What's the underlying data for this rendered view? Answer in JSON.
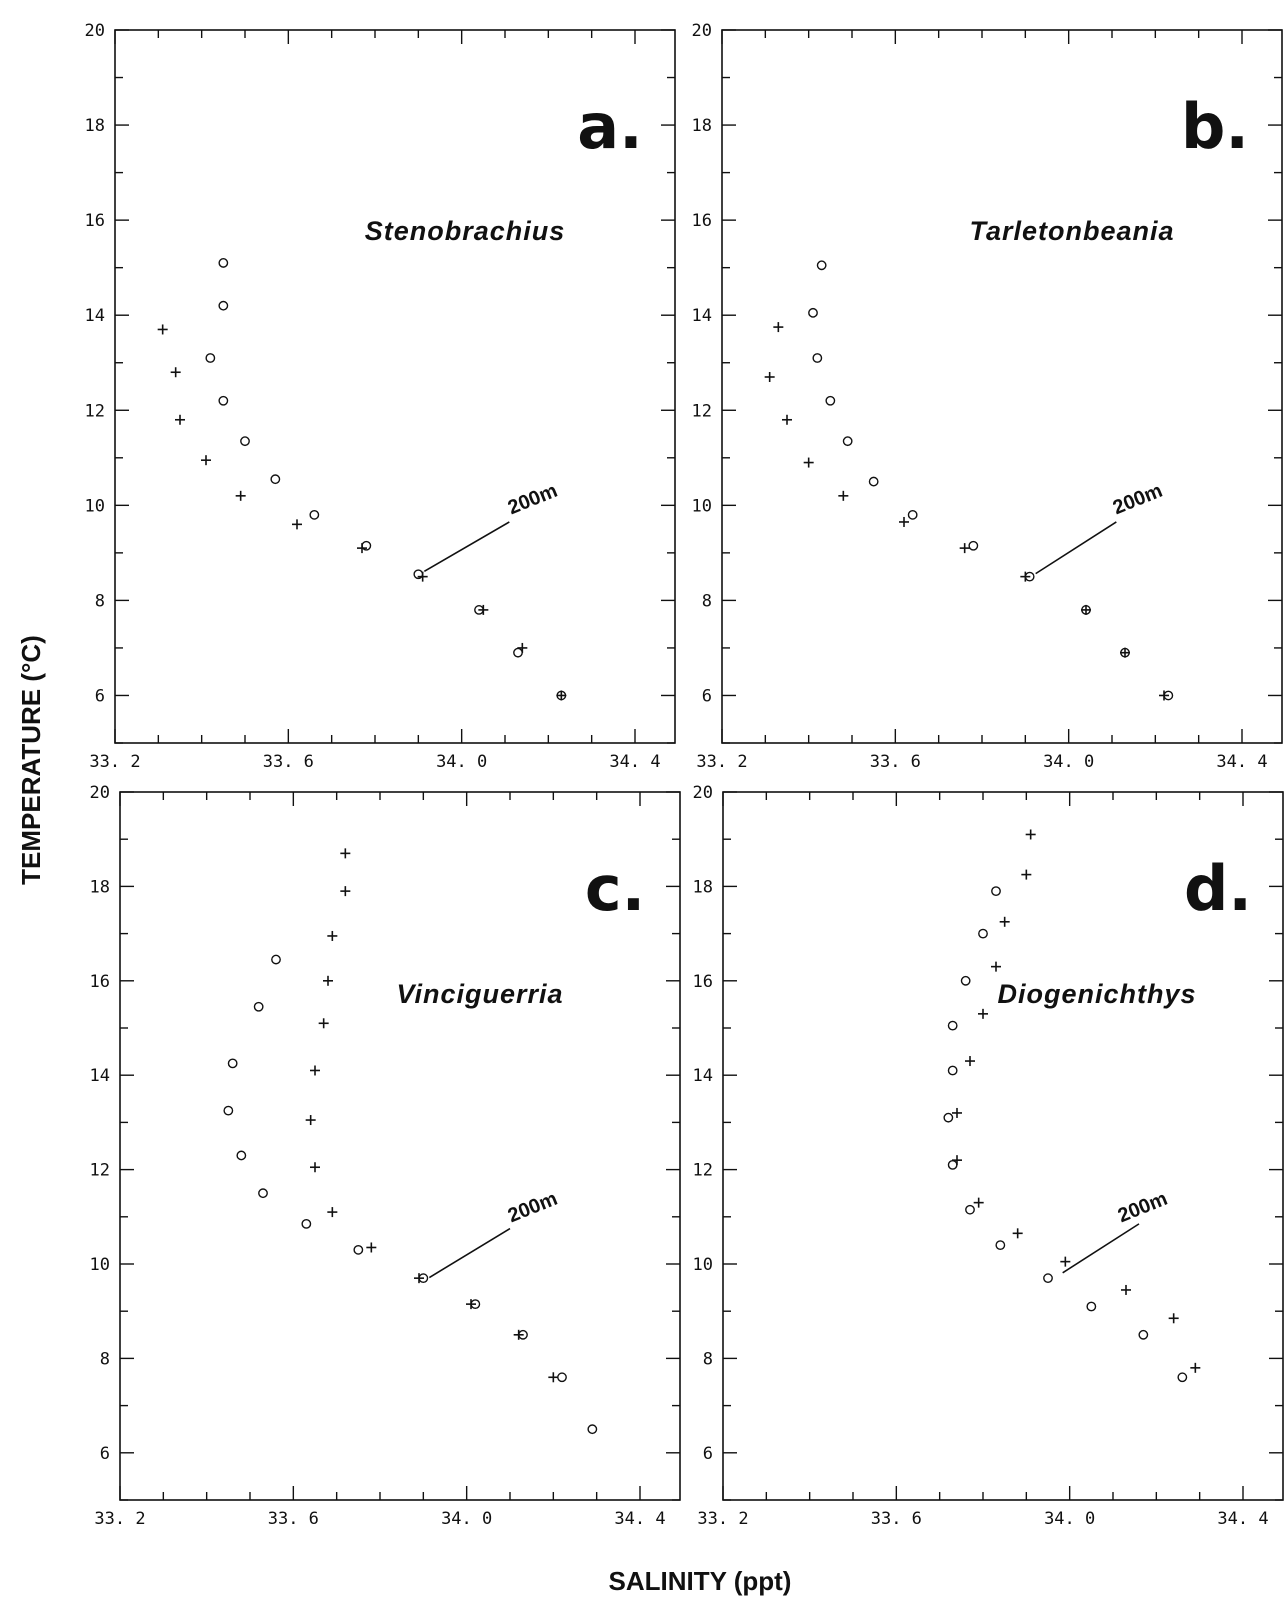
{
  "figure": {
    "y_axis_title": "TEMPERATURE (°C)",
    "x_axis_title": "SALINITY (ppt)"
  },
  "chart_data": [
    {
      "type": "scatter",
      "panel_label": "a.",
      "species_label": "Stenobrachius",
      "annotation": "200m",
      "xlim": [
        33.2,
        34.4
      ],
      "ylim": [
        5,
        20
      ],
      "x_ticks": [
        "33. 2",
        "33. 6",
        "34. 0",
        "34. 4"
      ],
      "y_ticks": [
        "6",
        "8",
        "10",
        "12",
        "14",
        "16",
        "18",
        "20"
      ],
      "series": [
        {
          "marker": "+",
          "points": [
            [
              33.31,
              13.7
            ],
            [
              33.34,
              12.8
            ],
            [
              33.35,
              11.8
            ],
            [
              33.41,
              10.95
            ],
            [
              33.49,
              10.2
            ],
            [
              33.62,
              9.6
            ],
            [
              33.77,
              9.1
            ],
            [
              33.91,
              8.5
            ],
            [
              34.05,
              7.8
            ],
            [
              34.14,
              7.0
            ],
            [
              34.23,
              6.0
            ]
          ]
        },
        {
          "marker": "o",
          "points": [
            [
              33.45,
              15.1
            ],
            [
              33.45,
              14.2
            ],
            [
              33.42,
              13.1
            ],
            [
              33.45,
              12.2
            ],
            [
              33.5,
              11.35
            ],
            [
              33.57,
              10.55
            ],
            [
              33.66,
              9.8
            ],
            [
              33.78,
              9.15
            ],
            [
              33.9,
              8.55
            ],
            [
              34.04,
              7.8
            ],
            [
              34.13,
              6.9
            ],
            [
              34.23,
              6.0
            ]
          ]
        }
      ],
      "annotation_points": [
        [
          33.9,
          8.55
        ],
        [
          34.11,
          9.65
        ]
      ]
    },
    {
      "type": "scatter",
      "panel_label": "b.",
      "species_label": "Tarletonbeania",
      "annotation": "200m",
      "xlim": [
        33.2,
        34.4
      ],
      "ylim": [
        5,
        20
      ],
      "x_ticks": [
        "33. 2",
        "33. 6",
        "34. 0",
        "34. 4"
      ],
      "y_ticks": [
        "6",
        "8",
        "10",
        "12",
        "14",
        "16",
        "18",
        "20"
      ],
      "series": [
        {
          "marker": "+",
          "points": [
            [
              33.33,
              13.75
            ],
            [
              33.31,
              12.7
            ],
            [
              33.35,
              11.8
            ],
            [
              33.4,
              10.9
            ],
            [
              33.48,
              10.2
            ],
            [
              33.62,
              9.65
            ],
            [
              33.76,
              9.1
            ],
            [
              33.9,
              8.5
            ],
            [
              34.04,
              7.8
            ],
            [
              34.13,
              6.9
            ],
            [
              34.22,
              6.0
            ]
          ]
        },
        {
          "marker": "o",
          "points": [
            [
              33.43,
              15.05
            ],
            [
              33.41,
              14.05
            ],
            [
              33.42,
              13.1
            ],
            [
              33.45,
              12.2
            ],
            [
              33.49,
              11.35
            ],
            [
              33.55,
              10.5
            ],
            [
              33.64,
              9.8
            ],
            [
              33.78,
              9.15
            ],
            [
              33.91,
              8.5
            ],
            [
              34.04,
              7.8
            ],
            [
              34.13,
              6.9
            ],
            [
              34.23,
              6.0
            ]
          ]
        }
      ],
      "annotation_points": [
        [
          33.91,
          8.5
        ],
        [
          34.11,
          9.65
        ]
      ]
    },
    {
      "type": "scatter",
      "panel_label": "c.",
      "species_label": "Vinciguerria",
      "annotation": "200m",
      "xlim": [
        33.2,
        34.4
      ],
      "ylim": [
        5,
        20
      ],
      "x_ticks": [
        "33. 2",
        "33. 6",
        "34. 0",
        "34. 4"
      ],
      "y_ticks": [
        "6",
        "8",
        "10",
        "12",
        "14",
        "16",
        "18",
        "20"
      ],
      "series": [
        {
          "marker": "+",
          "points": [
            [
              33.72,
              18.7
            ],
            [
              33.72,
              17.9
            ],
            [
              33.69,
              16.95
            ],
            [
              33.68,
              16.0
            ],
            [
              33.67,
              15.1
            ],
            [
              33.65,
              14.1
            ],
            [
              33.64,
              13.05
            ],
            [
              33.65,
              12.05
            ],
            [
              33.69,
              11.1
            ],
            [
              33.78,
              10.35
            ],
            [
              33.89,
              9.7
            ],
            [
              34.01,
              9.15
            ],
            [
              34.12,
              8.5
            ],
            [
              34.2,
              7.6
            ]
          ]
        },
        {
          "marker": "o",
          "points": [
            [
              33.56,
              16.45
            ],
            [
              33.52,
              15.45
            ],
            [
              33.46,
              14.25
            ],
            [
              33.45,
              13.25
            ],
            [
              33.48,
              12.3
            ],
            [
              33.53,
              11.5
            ],
            [
              33.63,
              10.85
            ],
            [
              33.75,
              10.3
            ],
            [
              33.9,
              9.7
            ],
            [
              34.02,
              9.15
            ],
            [
              34.13,
              8.5
            ],
            [
              34.22,
              7.6
            ],
            [
              34.29,
              6.5
            ]
          ]
        }
      ],
      "annotation_points": [
        [
          33.9,
          9.65
        ],
        [
          34.1,
          10.75
        ]
      ]
    },
    {
      "type": "scatter",
      "panel_label": "d.",
      "species_label": "Diogenichthys",
      "annotation": "200m",
      "xlim": [
        33.2,
        34.4
      ],
      "ylim": [
        5,
        20
      ],
      "x_ticks": [
        "33. 2",
        "33. 6",
        "34. 0",
        "34. 4"
      ],
      "y_ticks": [
        "6",
        "8",
        "10",
        "12",
        "14",
        "16",
        "18",
        "20"
      ],
      "series": [
        {
          "marker": "+",
          "points": [
            [
              33.91,
              19.1
            ],
            [
              33.9,
              18.25
            ],
            [
              33.85,
              17.25
            ],
            [
              33.83,
              16.3
            ],
            [
              33.8,
              15.3
            ],
            [
              33.77,
              14.3
            ],
            [
              33.74,
              13.2
            ],
            [
              33.74,
              12.2
            ],
            [
              33.79,
              11.3
            ],
            [
              33.88,
              10.65
            ],
            [
              33.99,
              10.05
            ],
            [
              34.13,
              9.45
            ],
            [
              34.24,
              8.85
            ],
            [
              34.29,
              7.8
            ]
          ]
        },
        {
          "marker": "o",
          "points": [
            [
              33.83,
              17.9
            ],
            [
              33.8,
              17.0
            ],
            [
              33.76,
              16.0
            ],
            [
              33.73,
              15.05
            ],
            [
              33.73,
              14.1
            ],
            [
              33.72,
              13.1
            ],
            [
              33.73,
              12.1
            ],
            [
              33.77,
              11.15
            ],
            [
              33.84,
              10.4
            ],
            [
              33.95,
              9.7
            ],
            [
              34.05,
              9.1
            ],
            [
              34.17,
              8.5
            ],
            [
              34.26,
              7.6
            ]
          ]
        }
      ],
      "annotation_points": [
        [
          33.97,
          9.75
        ],
        [
          34.16,
          10.85
        ]
      ]
    }
  ]
}
